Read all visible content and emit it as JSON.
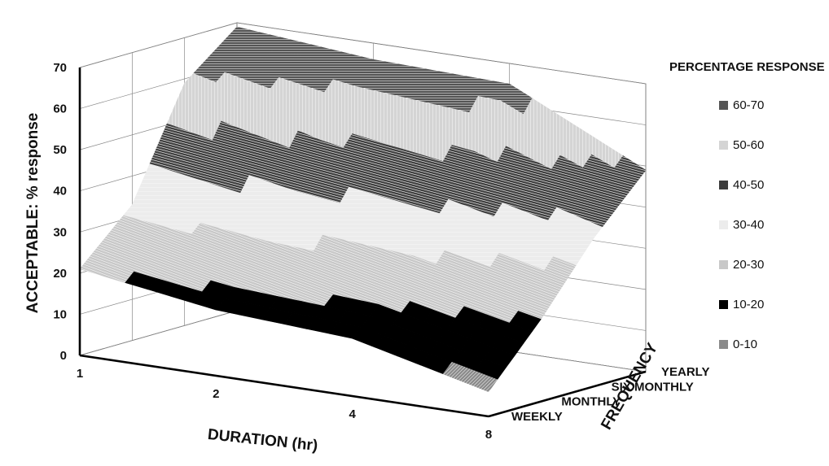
{
  "chart_data": {
    "type": "surface",
    "title": "",
    "zlabel": "ACCEPTABLE: % response",
    "xlabel": "DURATION (hr)",
    "ylabel": "FREQUENCY",
    "zlim": [
      0,
      70
    ],
    "z_ticks": [
      "0",
      "10",
      "20",
      "30",
      "40",
      "50",
      "60",
      "70"
    ],
    "x_categories": [
      "1",
      "2",
      "4",
      "8"
    ],
    "y_categories": [
      "WEEKLY",
      "MONTHLY",
      "SIX MONTHLY",
      "YEARLY"
    ],
    "values": [
      [
        21,
        16,
        14,
        6
      ],
      [
        33,
        29,
        27,
        20
      ],
      [
        59,
        50,
        44,
        36
      ],
      [
        69,
        66,
        65,
        49
      ]
    ],
    "grid": true,
    "legend": {
      "title": "PERCENTAGE RESPONSE",
      "placement": "right",
      "bands": [
        {
          "label": "60-70",
          "color": "#555555"
        },
        {
          "label": "50-60",
          "color": "#d4d4d4"
        },
        {
          "label": "40-50",
          "color": "#3c3c3c"
        },
        {
          "label": "30-40",
          "color": "#ececec"
        },
        {
          "label": "20-30",
          "color": "#c8c8c8"
        },
        {
          "label": "10-20",
          "color": "#000000"
        },
        {
          "label": "0-10",
          "color": "#8a8a8a"
        }
      ]
    }
  }
}
